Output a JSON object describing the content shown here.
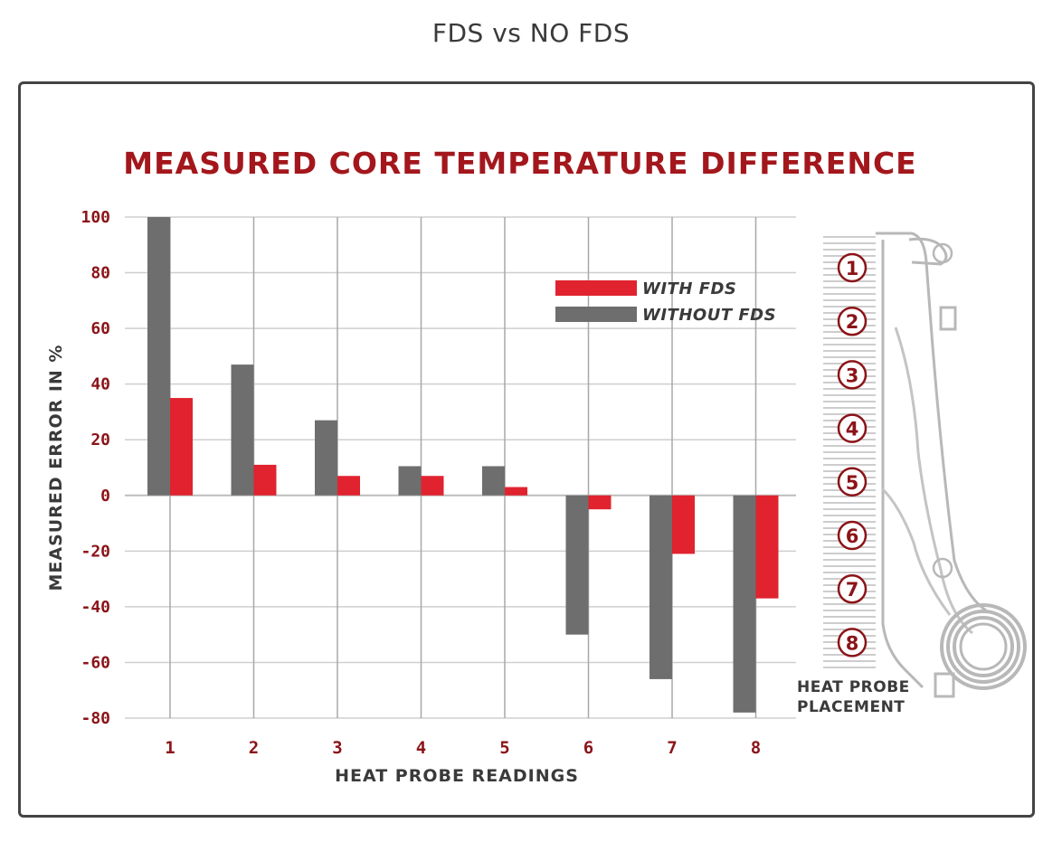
{
  "page": {
    "title": "FDS vs NO FDS"
  },
  "chart_data": {
    "type": "bar",
    "title": "MEASURED CORE TEMPERATURE DIFFERENCE",
    "xlabel": "HEAT PROBE READINGS",
    "ylabel": "MEASURED  ERROR IN %",
    "categories": [
      "1",
      "2",
      "3",
      "4",
      "5",
      "6",
      "7",
      "8"
    ],
    "ylim": [
      -80,
      100
    ],
    "yticks": [
      "100",
      "80",
      "60",
      "40",
      "20",
      "0",
      "-20",
      "-40",
      "-60",
      "-80"
    ],
    "ytick_values": [
      100,
      80,
      60,
      40,
      20,
      0,
      -20,
      -40,
      -60,
      -80
    ],
    "grid": true,
    "legend_position": "top-right",
    "series": [
      {
        "name": "WITHOUT FDS",
        "color": "#6e6e6e",
        "values": [
          100,
          47,
          27,
          10.5,
          10.5,
          -50,
          -66,
          -78
        ]
      },
      {
        "name": "WITH FDS",
        "color": "#e0232f",
        "values": [
          35,
          11,
          7,
          7,
          3,
          -5,
          -21,
          -37
        ]
      }
    ],
    "legend": [
      {
        "label": "WITH FDS",
        "color": "#e0232f"
      },
      {
        "label": "WITHOUT FDS",
        "color": "#6e6e6e"
      }
    ]
  },
  "diagram": {
    "probe_numbers": [
      "1",
      "2",
      "3",
      "4",
      "5",
      "6",
      "7",
      "8"
    ],
    "caption_line1": "HEAT PROBE",
    "caption_line2": "PLACEMENT"
  }
}
